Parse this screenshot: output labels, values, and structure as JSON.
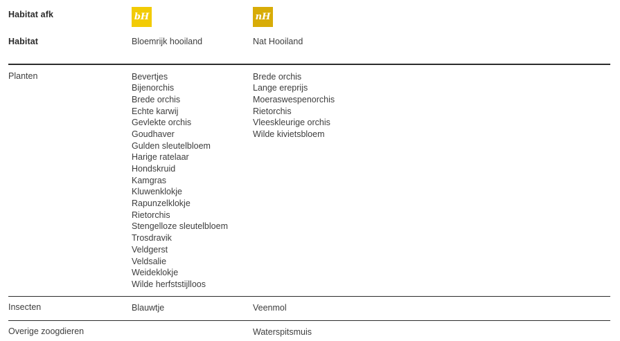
{
  "page": {
    "header": {
      "abbr_row_label": "Habitat afk",
      "habitat_row_label": "Habitat",
      "habitats": [
        {
          "abbr": "bH",
          "name": "Bloemrijk hooiland",
          "badge_color": "#F2CB05"
        },
        {
          "abbr": "nH",
          "name": "Nat Hooiland",
          "badge_color": "#D8AC07"
        }
      ]
    },
    "sections": [
      {
        "label": "Planten",
        "bloemrijk_hooiland": [
          "Bevertjes",
          "Bijenorchis",
          "Brede orchis",
          "Echte karwij",
          "Gevlekte orchis",
          "Goudhaver",
          "Gulden sleutelbloem",
          "Harige ratelaar",
          "Hondskruid",
          "Kamgras",
          "Kluwenklokje",
          "Rapunzelklokje",
          "Rietorchis",
          "Stengelloze sleutelbloem",
          "Trosdravik",
          "Veldgerst",
          "Veldsalie",
          "Weideklokje",
          "Wilde herfststijlloos"
        ],
        "nat_hooiland": [
          "Brede orchis",
          "Lange ereprijs",
          "Moeraswespenorchis",
          "Rietorchis",
          "Vleeskleurige orchis",
          "Wilde kivietsbloem"
        ]
      },
      {
        "label": "Insecten",
        "bloemrijk_hooiland": [
          "Blauwtje"
        ],
        "nat_hooiland": [
          "Veenmol"
        ]
      },
      {
        "label": "Overige zoogdieren",
        "bloemrijk_hooiland": [],
        "nat_hooiland": [
          "Waterspitsmuis"
        ]
      }
    ],
    "colors": {
      "text": "#3d3d3d",
      "rule": "#2b2b2b",
      "badge_bloemrijk": "#F2CB05",
      "badge_nat": "#D8AC07"
    }
  }
}
